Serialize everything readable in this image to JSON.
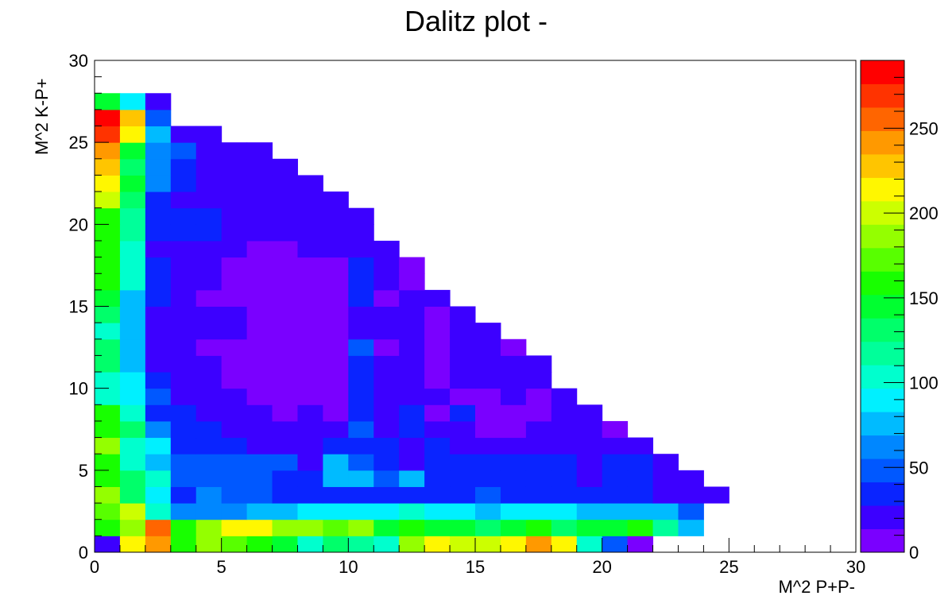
{
  "chart_data": {
    "type": "heatmap",
    "title": "Dalitz plot -",
    "xlabel": "M^2 P+P-",
    "ylabel": "M^2 K-P+",
    "xlim": [
      0,
      30
    ],
    "ylim": [
      0,
      30
    ],
    "zlim": [
      0,
      290
    ],
    "x_ticks": [
      0,
      5,
      10,
      15,
      20,
      25,
      30
    ],
    "y_ticks": [
      0,
      5,
      10,
      15,
      20,
      25,
      30
    ],
    "z_ticks": [
      0,
      50,
      100,
      150,
      200,
      250
    ],
    "bin_width": 1,
    "bin_height": 1,
    "colormap": [
      "#7a00ff",
      "#3c00ff",
      "#0a24ff",
      "#0058ff",
      "#0087ff",
      "#00bbff",
      "#00f0ff",
      "#00ffce",
      "#00ff9a",
      "#00ff6a",
      "#00ff30",
      "#18ff00",
      "#58ff00",
      "#94ff00",
      "#ccff00",
      "#fff700",
      "#ffc500",
      "#ff9900",
      "#ff6500",
      "#ff3300",
      "#ff0000"
    ],
    "rows": [
      [
        21,
        220,
        235,
        160,
        185,
        170,
        165,
        145,
        105,
        135,
        115,
        100,
        185,
        210,
        205,
        195,
        215,
        235,
        215,
        100,
        45,
        10,
        null,
        null,
        null,
        null,
        null,
        null,
        null,
        null
      ],
      [
        155,
        180,
        260,
        160,
        185,
        210,
        210,
        180,
        180,
        170,
        180,
        150,
        165,
        150,
        150,
        130,
        145,
        155,
        130,
        150,
        150,
        155,
        120,
        80,
        null,
        null,
        null,
        null,
        null,
        null
      ],
      [
        175,
        205,
        105,
        60,
        60,
        60,
        75,
        75,
        85,
        95,
        95,
        85,
        100,
        85,
        95,
        80,
        90,
        85,
        95,
        75,
        75,
        75,
        70,
        50,
        null,
        null,
        null,
        null,
        null,
        null
      ],
      [
        180,
        130,
        95,
        35,
        65,
        50,
        45,
        40,
        35,
        40,
        35,
        35,
        30,
        35,
        35,
        45,
        35,
        40,
        35,
        35,
        35,
        35,
        15,
        14,
        14,
        null,
        null,
        null,
        null,
        null
      ],
      [
        160,
        135,
        100,
        50,
        50,
        50,
        45,
        40,
        40,
        80,
        75,
        50,
        70,
        35,
        35,
        35,
        35,
        35,
        35,
        20,
        35,
        30,
        15,
        15,
        null,
        null,
        null,
        null,
        null,
        null
      ],
      [
        165,
        110,
        75,
        50,
        45,
        45,
        45,
        45,
        25,
        75,
        45,
        40,
        20,
        40,
        30,
        30,
        30,
        40,
        30,
        20,
        40,
        40,
        25,
        null,
        null,
        null,
        null,
        null,
        null,
        null
      ],
      [
        185,
        105,
        95,
        35,
        35,
        35,
        25,
        15,
        20,
        35,
        40,
        35,
        25,
        30,
        15,
        15,
        15,
        25,
        25,
        25,
        15,
        20,
        null,
        null,
        null,
        null,
        null,
        null,
        null,
        null
      ],
      [
        165,
        125,
        65,
        30,
        30,
        25,
        25,
        25,
        20,
        15,
        50,
        25,
        40,
        15,
        20,
        10,
        10,
        15,
        20,
        25,
        10,
        null,
        null,
        null,
        null,
        null,
        null,
        null,
        null,
        null
      ],
      [
        165,
        100,
        35,
        30,
        25,
        25,
        20,
        10,
        25,
        10,
        35,
        15,
        40,
        10,
        35,
        10,
        10,
        10,
        25,
        20,
        null,
        null,
        null,
        null,
        null,
        null,
        null,
        null,
        null,
        null
      ],
      [
        105,
        85,
        45,
        25,
        25,
        25,
        10,
        10,
        10,
        10,
        35,
        15,
        25,
        15,
        10,
        10,
        20,
        10,
        25,
        null,
        null,
        null,
        null,
        null,
        null,
        null,
        null,
        null,
        null,
        null
      ],
      [
        100,
        95,
        35,
        25,
        20,
        10,
        10,
        10,
        10,
        10,
        35,
        15,
        25,
        10,
        15,
        20,
        15,
        20,
        null,
        null,
        null,
        null,
        null,
        null,
        null,
        null,
        null,
        null,
        null,
        null
      ],
      [
        130,
        80,
        25,
        25,
        20,
        10,
        10,
        10,
        10,
        10,
        35,
        15,
        25,
        10,
        20,
        15,
        20,
        15,
        null,
        null,
        null,
        null,
        null,
        null,
        null,
        null,
        null,
        null,
        null,
        null
      ],
      [
        125,
        80,
        25,
        25,
        10,
        10,
        10,
        10,
        10,
        10,
        50,
        10,
        25,
        10,
        25,
        25,
        10,
        null,
        null,
        null,
        null,
        null,
        null,
        null,
        null,
        null,
        null,
        null,
        null,
        null
      ],
      [
        110,
        80,
        25,
        25,
        25,
        25,
        10,
        10,
        10,
        10,
        20,
        20,
        20,
        10,
        25,
        25,
        null,
        null,
        null,
        null,
        null,
        null,
        null,
        null,
        null,
        null,
        null,
        null,
        null,
        null
      ],
      [
        125,
        80,
        25,
        25,
        25,
        15,
        10,
        10,
        10,
        10,
        20,
        20,
        20,
        10,
        15,
        null,
        null,
        null,
        null,
        null,
        null,
        null,
        null,
        null,
        null,
        null,
        null,
        null,
        null,
        null
      ],
      [
        140,
        80,
        35,
        25,
        10,
        10,
        10,
        10,
        10,
        10,
        35,
        10,
        20,
        25,
        null,
        null,
        null,
        null,
        null,
        null,
        null,
        null,
        null,
        null,
        null,
        null,
        null,
        null,
        null,
        null
      ],
      [
        165,
        100,
        35,
        25,
        25,
        10,
        10,
        10,
        10,
        10,
        35,
        25,
        10,
        null,
        null,
        null,
        null,
        null,
        null,
        null,
        null,
        null,
        null,
        null,
        null,
        null,
        null,
        null,
        null,
        null
      ],
      [
        165,
        110,
        35,
        25,
        25,
        10,
        10,
        10,
        10,
        10,
        35,
        25,
        10,
        null,
        null,
        null,
        null,
        null,
        null,
        null,
        null,
        null,
        null,
        null,
        null,
        null,
        null,
        null,
        null,
        null
      ],
      [
        155,
        105,
        25,
        25,
        25,
        25,
        10,
        10,
        15,
        25,
        25,
        25,
        null,
        null,
        null,
        null,
        null,
        null,
        null,
        null,
        null,
        null,
        null,
        null,
        null,
        null,
        null,
        null,
        null,
        null
      ],
      [
        165,
        115,
        35,
        35,
        35,
        25,
        25,
        25,
        25,
        25,
        25,
        null,
        null,
        null,
        null,
        null,
        null,
        null,
        null,
        null,
        null,
        null,
        null,
        null,
        null,
        null,
        null,
        null,
        null,
        null
      ],
      [
        165,
        115,
        35,
        35,
        35,
        25,
        25,
        25,
        25,
        20,
        20,
        null,
        null,
        null,
        null,
        null,
        null,
        null,
        null,
        null,
        null,
        null,
        null,
        null,
        null,
        null,
        null,
        null,
        null,
        null
      ],
      [
        195,
        135,
        35,
        25,
        25,
        25,
        25,
        25,
        25,
        20,
        null,
        null,
        null,
        null,
        null,
        null,
        null,
        null,
        null,
        null,
        null,
        null,
        null,
        null,
        null,
        null,
        null,
        null,
        null,
        null
      ],
      [
        215,
        140,
        65,
        35,
        25,
        25,
        25,
        20,
        20,
        null,
        null,
        null,
        null,
        null,
        null,
        null,
        null,
        null,
        null,
        null,
        null,
        null,
        null,
        null,
        null,
        null,
        null,
        null,
        null,
        null
      ],
      [
        225,
        135,
        65,
        35,
        25,
        25,
        25,
        20,
        null,
        null,
        null,
        null,
        null,
        null,
        null,
        null,
        null,
        null,
        null,
        null,
        null,
        null,
        null,
        null,
        null,
        null,
        null,
        null,
        null,
        null
      ],
      [
        240,
        145,
        65,
        45,
        25,
        25,
        20,
        null,
        null,
        null,
        null,
        null,
        null,
        null,
        null,
        null,
        null,
        null,
        null,
        null,
        null,
        null,
        null,
        null,
        null,
        null,
        null,
        null,
        null,
        null
      ],
      [
        265,
        220,
        80,
        25,
        15,
        null,
        null,
        null,
        null,
        null,
        null,
        null,
        null,
        null,
        null,
        null,
        null,
        null,
        null,
        null,
        null,
        null,
        null,
        null,
        null,
        null,
        null,
        null,
        null,
        null
      ],
      [
        285,
        225,
        55,
        null,
        null,
        null,
        null,
        null,
        null,
        null,
        null,
        null,
        null,
        null,
        null,
        null,
        null,
        null,
        null,
        null,
        null,
        null,
        null,
        null,
        null,
        null,
        null,
        null,
        null,
        null
      ],
      [
        140,
        90,
        15,
        null,
        null,
        null,
        null,
        null,
        null,
        null,
        null,
        null,
        null,
        null,
        null,
        null,
        null,
        null,
        null,
        null,
        null,
        null,
        null,
        null,
        null,
        null,
        null,
        null,
        null,
        null
      ]
    ]
  }
}
